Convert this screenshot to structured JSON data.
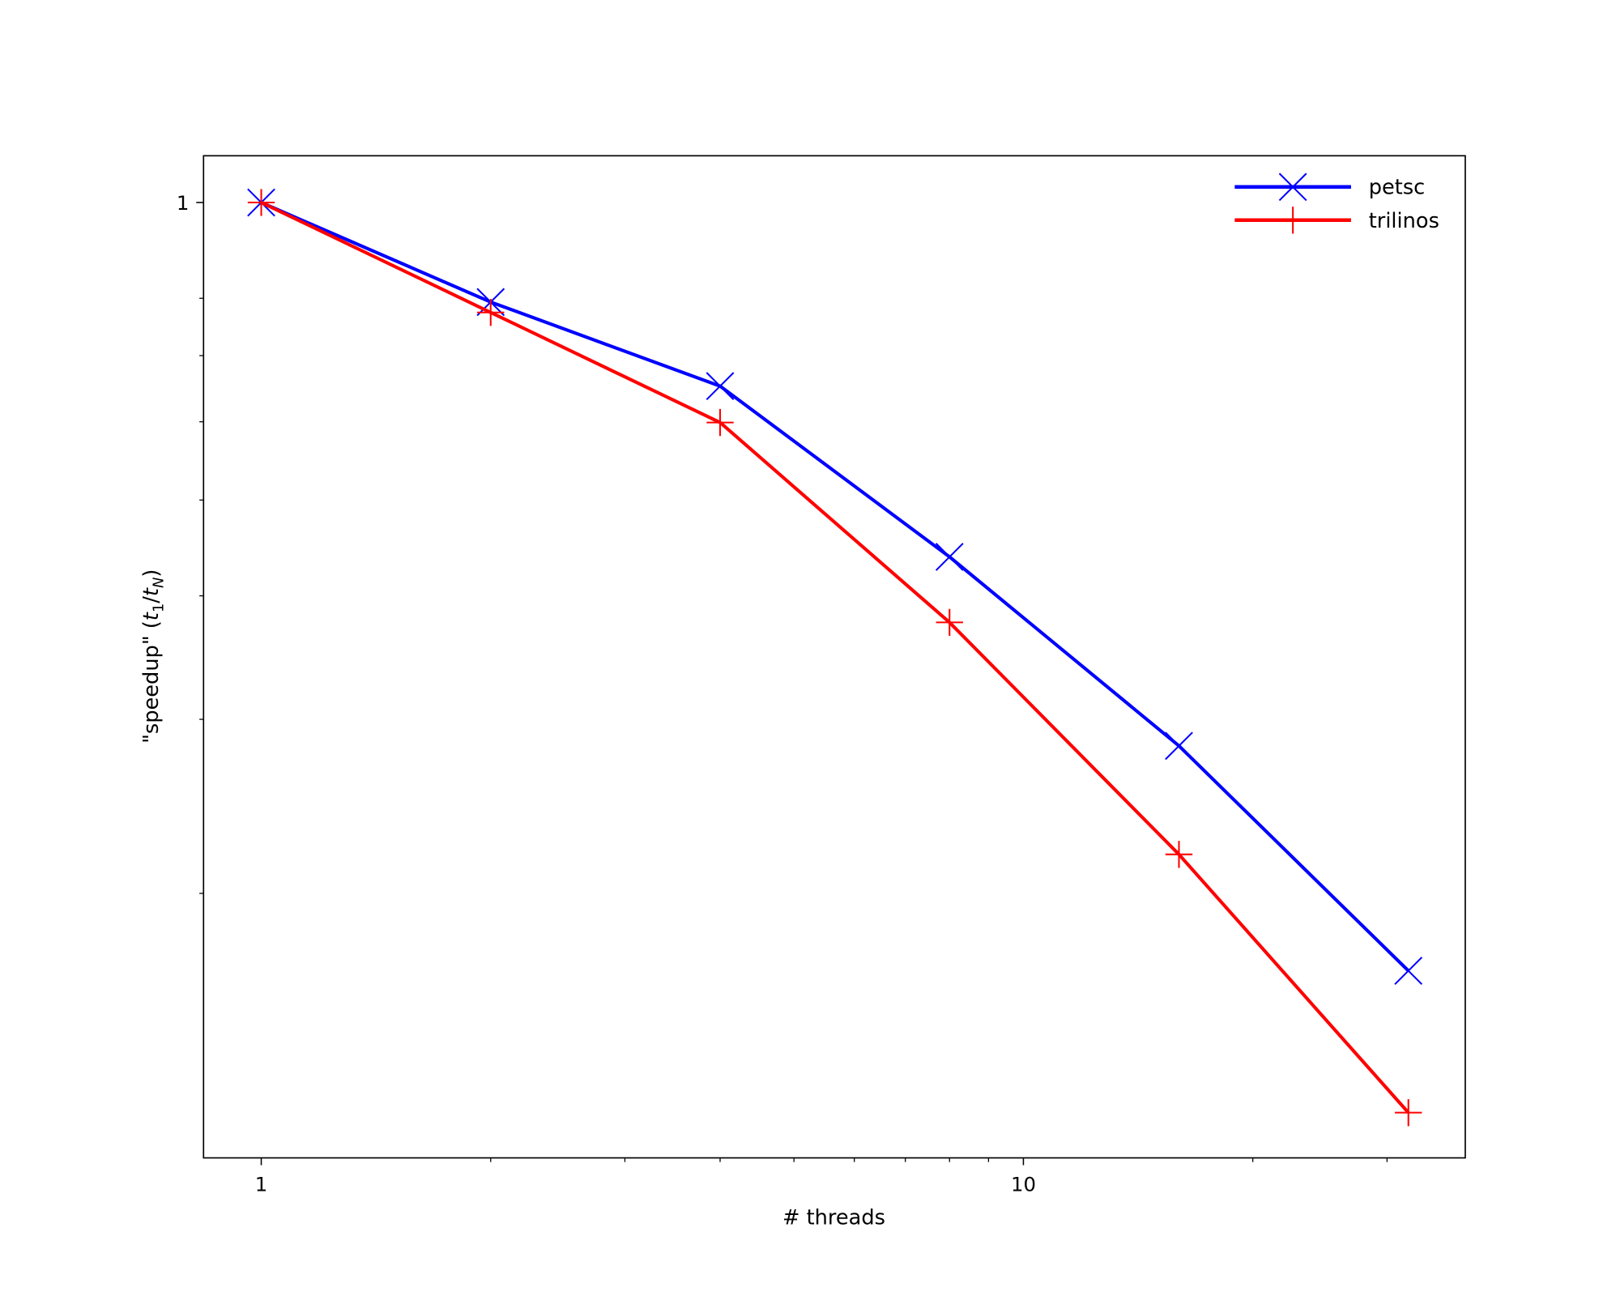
{
  "chart_data": {
    "type": "line",
    "title": "",
    "xlabel": "# threads",
    "ylabel_parts": [
      "\"speedup\" (",
      "t",
      "1",
      "/",
      "t",
      "N",
      ")"
    ],
    "xscale": "log",
    "yscale": "log",
    "xlim": [
      0.84,
      38
    ],
    "ylim": [
      0.108,
      1.115
    ],
    "x_ticks": [
      {
        "value": 1,
        "label": "1"
      },
      {
        "value": 10,
        "label": "10"
      }
    ],
    "y_ticks": [
      {
        "value": 1,
        "label": "1"
      }
    ],
    "x_minor_ticks": [
      2,
      3,
      4,
      5,
      6,
      7,
      8,
      9,
      20,
      30
    ],
    "y_minor_ticks": [
      0.2,
      0.3,
      0.4,
      0.5,
      0.6,
      0.7,
      0.8
    ],
    "grid": false,
    "legend_position": "top-right",
    "x": [
      1,
      2,
      4,
      8,
      16,
      32
    ],
    "series": [
      {
        "name": "petsc",
        "color": "#0000ff",
        "marker": "x",
        "values": [
          1.0,
          0.793,
          0.652,
          0.438,
          0.282,
          0.167
        ]
      },
      {
        "name": "trilinos",
        "color": "#ff0000",
        "marker": "+",
        "values": [
          1.0,
          0.774,
          0.599,
          0.376,
          0.219,
          0.12
        ]
      }
    ]
  }
}
